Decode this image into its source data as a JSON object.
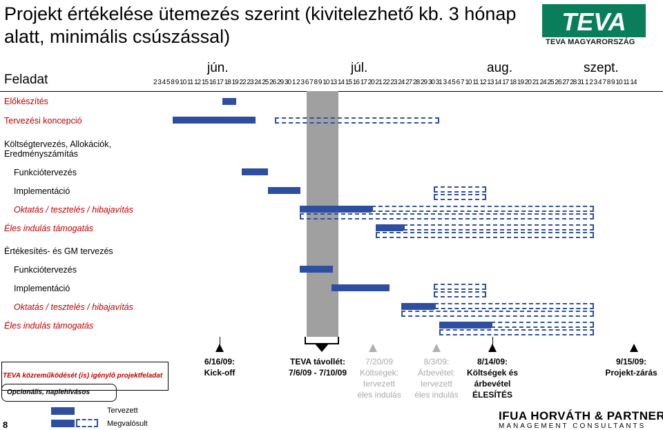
{
  "title": "Projekt értékelése ütemezés szerint (kivitelezhető kb. 3 hónap alatt, minimális csúszással)",
  "logo": {
    "text": "TEVA",
    "sub": "TEVA MAGYARORSZÁG"
  },
  "header": {
    "feladat": "Feladat"
  },
  "months": [
    "jún.",
    "júl.",
    "aug.",
    "szept."
  ],
  "days_text": "2 3 4 5 8 9 10 11 12 15 16 17 18 19 22 23 24 25 26 29 30 1 2 3 6 7 8 9 10 13 14 15 16 17 20 21 22 23 24 27 28 29 30 31 3 4 5 6 7 10 11 12 13 14 17 18 19 20 21 24 25 26 27 28 31 1 2 3 4 7 8 9 10 11 14",
  "tasks": [
    {
      "label": "Előkészítés"
    },
    {
      "label": "Tervezési koncepció"
    },
    {
      "label": "Költségtervezés, Allokációk, Eredményszámítás"
    },
    {
      "label": "Funkciótervezés"
    },
    {
      "label": "Implementáció"
    },
    {
      "label": "Oktatás / tesztelés / hibajavítás"
    },
    {
      "label": "Éles indulás támogatás"
    },
    {
      "label": "Értékesítés- és GM tervezés"
    },
    {
      "label": "Funkciótervezés"
    },
    {
      "label": "Implementáció"
    },
    {
      "label": "Oktatás / tesztelés / hibajavítás"
    },
    {
      "label": "Éles indulás támogatás"
    }
  ],
  "milestones": [
    {
      "label": "6/16/09:\nKick-off"
    },
    {
      "label": "TEVA távollét:\n7/6/09 - 7/10/09"
    },
    {
      "label": "7/20/09\nKöltségek:\ntervezett\néles indulás"
    },
    {
      "label": "8/3/09:\nÁrbevétel:\ntervezett\néles indulás"
    },
    {
      "label": "8/14/09:\nKöltségek és\nárbevétel\nÉLESÍTÉS"
    },
    {
      "label": "9/15/09:\nProjekt-zárás"
    }
  ],
  "legend": {
    "teva": "TEVA közreműködését (is) igénylő projektfeladat",
    "optional": "Opcionális, naplehívásos",
    "planned": "Tervezett",
    "realized": "Megvalósult"
  },
  "page_number": "8",
  "footer": {
    "brand": "IFUA HORVÁTH & PARTNERS",
    "sub": "MANAGEMENT CONSULTANTS"
  },
  "colors": {
    "bar": "#2e4fa0",
    "accent_red": "#c00000",
    "grey_col": "#a0a0a0",
    "teva_green": "#0a7d5a"
  }
}
